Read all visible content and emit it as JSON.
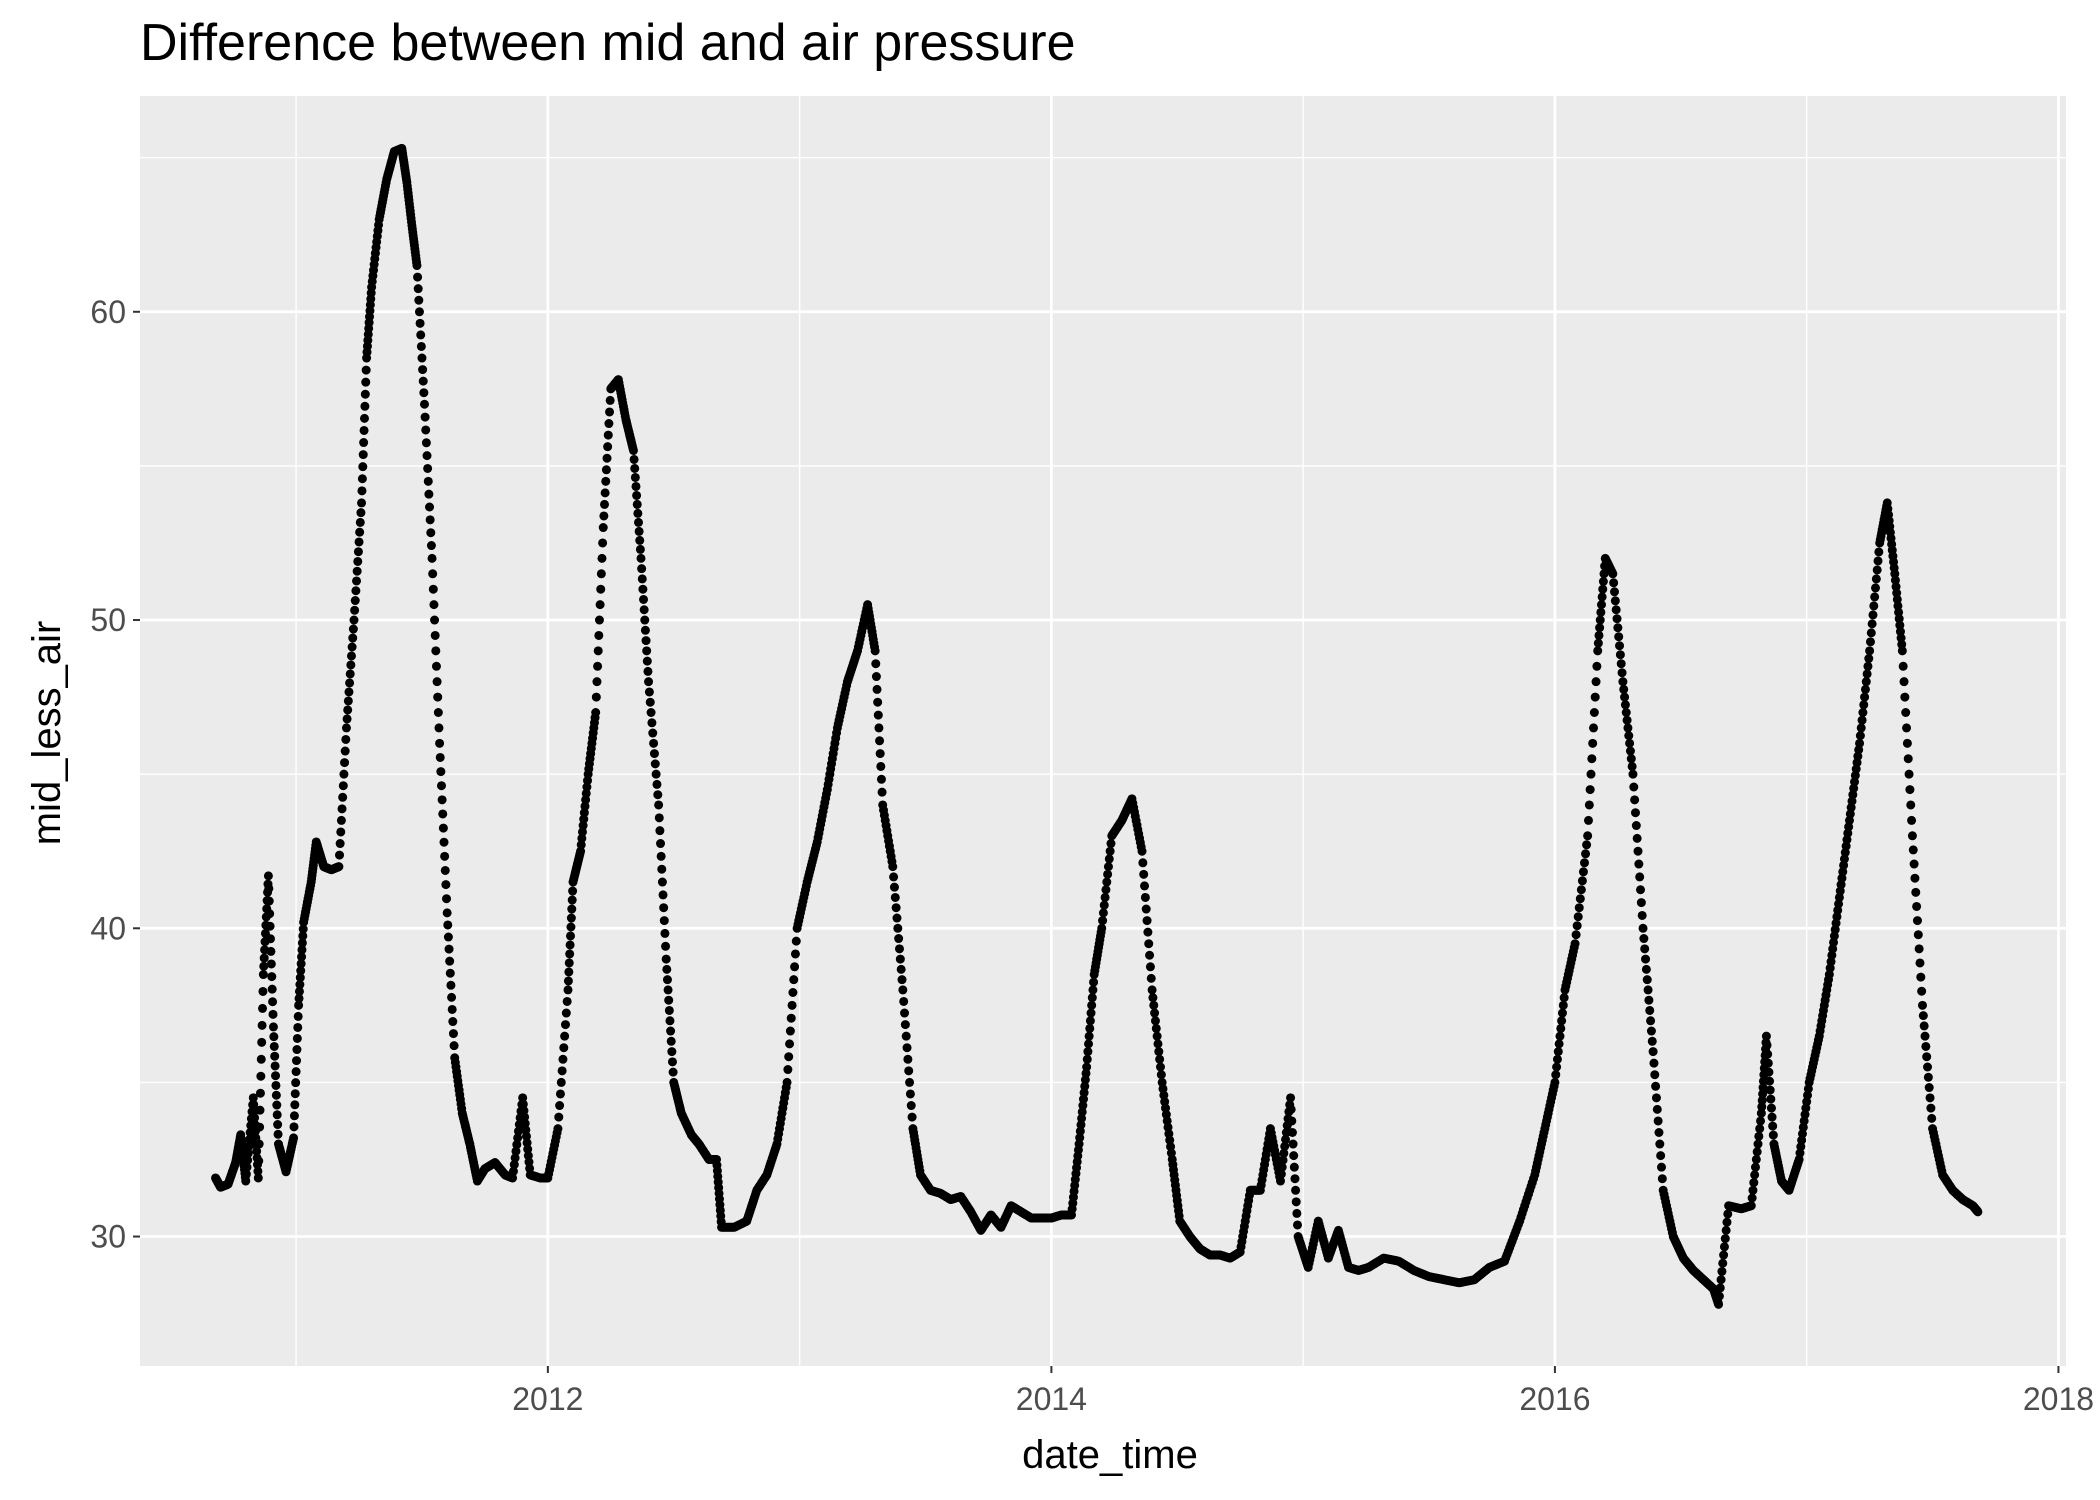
{
  "chart_data": {
    "type": "scatter",
    "title": "Difference between mid and air pressure",
    "xlabel": "date_time",
    "ylabel": "mid_less_air",
    "xlim": [
      2010.38,
      2018.03
    ],
    "ylim": [
      25.8,
      67.0
    ],
    "x_ticks": [
      2012,
      2014,
      2016,
      2018
    ],
    "x_tick_labels": [
      "2012",
      "2014",
      "2016",
      "2018"
    ],
    "y_ticks": [
      30,
      40,
      50,
      60
    ],
    "y_tick_labels": [
      "30",
      "40",
      "50",
      "60"
    ],
    "grid": true,
    "panel_color": "#ebebeb",
    "grid_color": "#ffffff",
    "point_color": "#000000",
    "series": [
      {
        "points": [
          [
            2010.68,
            31.9
          ],
          [
            2010.7,
            31.6
          ],
          [
            2010.73,
            31.7
          ],
          [
            2010.76,
            32.4
          ],
          [
            2010.78,
            33.3
          ],
          [
            2010.8,
            31.8
          ],
          [
            2010.83,
            34.5
          ],
          [
            2010.85,
            31.9
          ],
          [
            2010.87,
            38.5
          ],
          [
            2010.89,
            41.7
          ],
          [
            2010.91,
            36.8
          ],
          [
            2010.93,
            33.0
          ],
          [
            2010.96,
            32.1
          ],
          [
            2010.99,
            33.2
          ],
          [
            2011.01,
            37.5
          ],
          [
            2011.03,
            40.2
          ],
          [
            2011.06,
            41.5
          ],
          [
            2011.08,
            42.8
          ],
          [
            2011.11,
            42.0
          ],
          [
            2011.14,
            41.9
          ],
          [
            2011.17,
            42.0
          ],
          [
            2011.2,
            46.5
          ],
          [
            2011.23,
            50.0
          ],
          [
            2011.26,
            53.8
          ],
          [
            2011.28,
            58.5
          ],
          [
            2011.3,
            60.8
          ],
          [
            2011.33,
            63.0
          ],
          [
            2011.36,
            64.3
          ],
          [
            2011.39,
            65.2
          ],
          [
            2011.42,
            65.3
          ],
          [
            2011.44,
            64.2
          ],
          [
            2011.46,
            62.8
          ],
          [
            2011.48,
            61.5
          ],
          [
            2011.51,
            57.0
          ],
          [
            2011.54,
            52.0
          ],
          [
            2011.57,
            46.0
          ],
          [
            2011.6,
            40.5
          ],
          [
            2011.63,
            35.8
          ],
          [
            2011.66,
            34.0
          ],
          [
            2011.69,
            33.0
          ],
          [
            2011.72,
            31.8
          ],
          [
            2011.75,
            32.2
          ],
          [
            2011.79,
            32.4
          ],
          [
            2011.83,
            32.0
          ],
          [
            2011.86,
            31.9
          ],
          [
            2011.9,
            34.5
          ],
          [
            2011.93,
            32.0
          ],
          [
            2011.97,
            31.9
          ],
          [
            2012.0,
            31.9
          ],
          [
            2012.04,
            33.5
          ],
          [
            2012.08,
            38.0
          ],
          [
            2012.1,
            41.5
          ],
          [
            2012.13,
            42.5
          ],
          [
            2012.16,
            45.0
          ],
          [
            2012.19,
            47.0
          ],
          [
            2012.22,
            53.0
          ],
          [
            2012.25,
            57.5
          ],
          [
            2012.28,
            57.8
          ],
          [
            2012.31,
            56.5
          ],
          [
            2012.34,
            55.5
          ],
          [
            2012.37,
            52.0
          ],
          [
            2012.4,
            48.0
          ],
          [
            2012.44,
            44.0
          ],
          [
            2012.47,
            39.0
          ],
          [
            2012.5,
            35.0
          ],
          [
            2012.53,
            34.0
          ],
          [
            2012.57,
            33.3
          ],
          [
            2012.6,
            33.0
          ],
          [
            2012.64,
            32.5
          ],
          [
            2012.67,
            32.5
          ],
          [
            2012.69,
            30.3
          ],
          [
            2012.74,
            30.3
          ],
          [
            2012.79,
            30.5
          ],
          [
            2012.83,
            31.5
          ],
          [
            2012.87,
            32.0
          ],
          [
            2012.91,
            33.0
          ],
          [
            2012.95,
            35.0
          ],
          [
            2012.99,
            40.0
          ],
          [
            2013.03,
            41.5
          ],
          [
            2013.07,
            42.8
          ],
          [
            2013.11,
            44.5
          ],
          [
            2013.15,
            46.5
          ],
          [
            2013.19,
            48.0
          ],
          [
            2013.23,
            49.0
          ],
          [
            2013.27,
            50.5
          ],
          [
            2013.3,
            49.0
          ],
          [
            2013.33,
            44.0
          ],
          [
            2013.37,
            42.0
          ],
          [
            2013.41,
            38.0
          ],
          [
            2013.45,
            33.5
          ],
          [
            2013.48,
            32.0
          ],
          [
            2013.52,
            31.5
          ],
          [
            2013.56,
            31.4
          ],
          [
            2013.6,
            31.2
          ],
          [
            2013.64,
            31.3
          ],
          [
            2013.68,
            30.8
          ],
          [
            2013.72,
            30.2
          ],
          [
            2013.76,
            30.7
          ],
          [
            2013.8,
            30.3
          ],
          [
            2013.84,
            31.0
          ],
          [
            2013.88,
            30.8
          ],
          [
            2013.92,
            30.6
          ],
          [
            2013.96,
            30.6
          ],
          [
            2014.0,
            30.6
          ],
          [
            2014.04,
            30.7
          ],
          [
            2014.08,
            30.7
          ],
          [
            2014.11,
            33.0
          ],
          [
            2014.14,
            35.5
          ],
          [
            2014.17,
            38.5
          ],
          [
            2014.2,
            40.0
          ],
          [
            2014.24,
            43.0
          ],
          [
            2014.28,
            43.5
          ],
          [
            2014.32,
            44.2
          ],
          [
            2014.36,
            42.5
          ],
          [
            2014.4,
            38.0
          ],
          [
            2014.44,
            35.0
          ],
          [
            2014.48,
            32.5
          ],
          [
            2014.51,
            30.5
          ],
          [
            2014.55,
            30.0
          ],
          [
            2014.59,
            29.6
          ],
          [
            2014.63,
            29.4
          ],
          [
            2014.67,
            29.4
          ],
          [
            2014.71,
            29.3
          ],
          [
            2014.75,
            29.5
          ],
          [
            2014.79,
            31.5
          ],
          [
            2014.83,
            31.5
          ],
          [
            2014.87,
            33.5
          ],
          [
            2014.91,
            31.8
          ],
          [
            2014.95,
            34.5
          ],
          [
            2014.98,
            30.0
          ],
          [
            2015.02,
            29.0
          ],
          [
            2015.06,
            30.5
          ],
          [
            2015.1,
            29.3
          ],
          [
            2015.14,
            30.2
          ],
          [
            2015.18,
            29.0
          ],
          [
            2015.22,
            28.9
          ],
          [
            2015.26,
            29.0
          ],
          [
            2015.32,
            29.3
          ],
          [
            2015.38,
            29.2
          ],
          [
            2015.44,
            28.9
          ],
          [
            2015.5,
            28.7
          ],
          [
            2015.56,
            28.6
          ],
          [
            2015.62,
            28.5
          ],
          [
            2015.68,
            28.6
          ],
          [
            2015.74,
            29.0
          ],
          [
            2015.8,
            29.2
          ],
          [
            2015.86,
            30.5
          ],
          [
            2015.92,
            32.0
          ],
          [
            2015.96,
            33.5
          ],
          [
            2016.0,
            35.0
          ],
          [
            2016.04,
            38.0
          ],
          [
            2016.08,
            39.5
          ],
          [
            2016.13,
            43.0
          ],
          [
            2016.17,
            49.0
          ],
          [
            2016.2,
            52.0
          ],
          [
            2016.23,
            51.5
          ],
          [
            2016.27,
            48.0
          ],
          [
            2016.31,
            45.0
          ],
          [
            2016.35,
            40.0
          ],
          [
            2016.39,
            36.0
          ],
          [
            2016.43,
            31.5
          ],
          [
            2016.47,
            30.0
          ],
          [
            2016.51,
            29.3
          ],
          [
            2016.55,
            28.9
          ],
          [
            2016.59,
            28.6
          ],
          [
            2016.63,
            28.3
          ],
          [
            2016.65,
            27.8
          ],
          [
            2016.69,
            31.0
          ],
          [
            2016.74,
            30.9
          ],
          [
            2016.78,
            31.0
          ],
          [
            2016.82,
            34.0
          ],
          [
            2016.84,
            36.5
          ],
          [
            2016.87,
            33.0
          ],
          [
            2016.9,
            31.8
          ],
          [
            2016.93,
            31.5
          ],
          [
            2016.97,
            32.5
          ],
          [
            2017.01,
            35.0
          ],
          [
            2017.05,
            36.5
          ],
          [
            2017.09,
            38.5
          ],
          [
            2017.13,
            41.0
          ],
          [
            2017.17,
            43.5
          ],
          [
            2017.21,
            46.0
          ],
          [
            2017.25,
            49.0
          ],
          [
            2017.29,
            52.5
          ],
          [
            2017.32,
            53.8
          ],
          [
            2017.35,
            51.5
          ],
          [
            2017.38,
            49.0
          ],
          [
            2017.42,
            43.0
          ],
          [
            2017.46,
            37.5
          ],
          [
            2017.5,
            33.5
          ],
          [
            2017.54,
            32.0
          ],
          [
            2017.58,
            31.5
          ],
          [
            2017.62,
            31.2
          ],
          [
            2017.66,
            31.0
          ],
          [
            2017.68,
            30.8
          ]
        ]
      }
    ]
  }
}
